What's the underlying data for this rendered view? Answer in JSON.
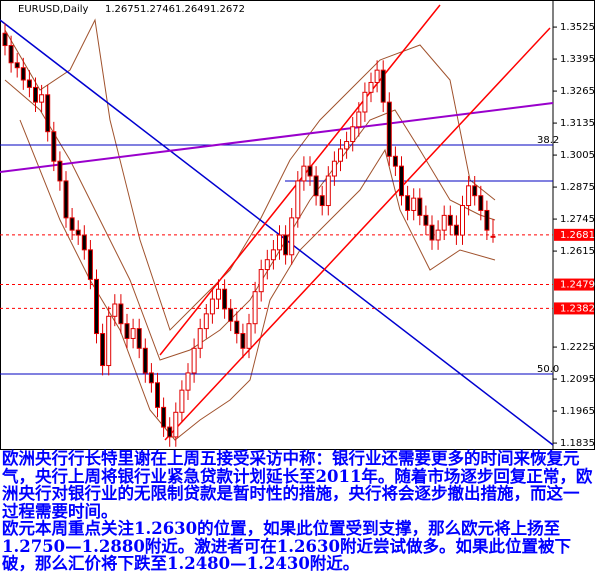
{
  "chart_data": {
    "type": "candlestick",
    "title": "EURUSD,Daily",
    "open": [
      1.35,
      1.345,
      1.338,
      1.336,
      1.331,
      1.328,
      1.322,
      1.325,
      1.31,
      1.298,
      1.29,
      1.275,
      1.27,
      1.268,
      1.262,
      1.25,
      1.228,
      1.215,
      1.235,
      1.24,
      1.232,
      1.226,
      1.23,
      1.222,
      1.212,
      1.208,
      1.198,
      1.19,
      1.186,
      1.196,
      1.205,
      1.212,
      1.222,
      1.23,
      1.236,
      1.242,
      1.246,
      1.238,
      1.233,
      1.228,
      1.222,
      1.232,
      1.245,
      1.254,
      1.258,
      1.262,
      1.268,
      1.26,
      1.275,
      1.29,
      1.296,
      1.292,
      1.284,
      1.28,
      1.292,
      1.298,
      1.303,
      1.306,
      1.312,
      1.318,
      1.326,
      1.33,
      1.335,
      1.322,
      1.3,
      1.296,
      1.284,
      1.278,
      1.283,
      1.276,
      1.272,
      1.266,
      1.27,
      1.276,
      1.272,
      1.268,
      1.28,
      1.288,
      1.284,
      1.278,
      1.2675
    ],
    "high": [
      1.354,
      1.349,
      1.342,
      1.34,
      1.335,
      1.332,
      1.329,
      1.329,
      1.314,
      1.302,
      1.294,
      1.279,
      1.274,
      1.272,
      1.266,
      1.254,
      1.232,
      1.239,
      1.244,
      1.244,
      1.236,
      1.234,
      1.234,
      1.226,
      1.216,
      1.212,
      1.202,
      1.194,
      1.2,
      1.209,
      1.216,
      1.226,
      1.234,
      1.24,
      1.246,
      1.25,
      1.25,
      1.242,
      1.237,
      1.232,
      1.236,
      1.249,
      1.258,
      1.262,
      1.266,
      1.272,
      1.272,
      1.279,
      1.294,
      1.3,
      1.3,
      1.296,
      1.288,
      1.296,
      1.302,
      1.307,
      1.31,
      1.316,
      1.322,
      1.33,
      1.334,
      1.339,
      1.339,
      1.326,
      1.304,
      1.3,
      1.288,
      1.287,
      1.287,
      1.28,
      1.276,
      1.274,
      1.28,
      1.28,
      1.276,
      1.284,
      1.292,
      1.292,
      1.288,
      1.282,
      1.2746
    ],
    "low": [
      1.341,
      1.334,
      1.332,
      1.327,
      1.324,
      1.318,
      1.318,
      1.306,
      1.294,
      1.286,
      1.271,
      1.266,
      1.264,
      1.258,
      1.246,
      1.224,
      1.211,
      1.211,
      1.231,
      1.228,
      1.222,
      1.222,
      1.218,
      1.208,
      1.204,
      1.194,
      1.186,
      1.182,
      1.182,
      1.192,
      1.201,
      1.208,
      1.218,
      1.226,
      1.232,
      1.238,
      1.234,
      1.229,
      1.224,
      1.218,
      1.218,
      1.228,
      1.241,
      1.25,
      1.254,
      1.258,
      1.256,
      1.256,
      1.271,
      1.286,
      1.288,
      1.28,
      1.276,
      1.276,
      1.288,
      1.294,
      1.299,
      1.302,
      1.308,
      1.314,
      1.322,
      1.326,
      1.318,
      1.296,
      1.292,
      1.28,
      1.274,
      1.274,
      1.272,
      1.268,
      1.262,
      1.262,
      1.266,
      1.268,
      1.264,
      1.264,
      1.276,
      1.28,
      1.274,
      1.266,
      1.2649
    ],
    "close": [
      1.345,
      1.338,
      1.336,
      1.331,
      1.328,
      1.322,
      1.325,
      1.31,
      1.298,
      1.29,
      1.275,
      1.27,
      1.268,
      1.262,
      1.25,
      1.228,
      1.215,
      1.235,
      1.24,
      1.232,
      1.226,
      1.23,
      1.222,
      1.212,
      1.208,
      1.198,
      1.19,
      1.186,
      1.196,
      1.205,
      1.212,
      1.222,
      1.23,
      1.236,
      1.242,
      1.246,
      1.238,
      1.233,
      1.228,
      1.222,
      1.232,
      1.245,
      1.254,
      1.258,
      1.262,
      1.268,
      1.26,
      1.275,
      1.29,
      1.296,
      1.292,
      1.284,
      1.28,
      1.292,
      1.298,
      1.303,
      1.306,
      1.312,
      1.318,
      1.326,
      1.33,
      1.335,
      1.322,
      1.3,
      1.296,
      1.284,
      1.278,
      1.283,
      1.276,
      1.272,
      1.266,
      1.27,
      1.276,
      1.272,
      1.268,
      1.28,
      1.288,
      1.284,
      1.278,
      1.27,
      1.2672
    ],
    "up_color": "#ffffff",
    "down_color": "#000000",
    "wick_color": "#e00000",
    "ylim": [
      1.1815,
      1.3635
    ],
    "yticks": [
      1.3525,
      1.3395,
      1.3265,
      1.3135,
      1.3005,
      1.2875,
      1.2745,
      1.2615,
      1.2225,
      1.2095,
      1.1965,
      1.1835
    ],
    "price_lines": [
      1.2681,
      1.2479,
      1.2382
    ],
    "price_line_color": "#ff0000",
    "fib_levels": [
      38.2,
      {
        "value": 50,
        "label": "50.0"
      }
    ]
  },
  "notes": [
    "欧洲央行行长特里谢在上周五接受采访中称：银行业还需要更多的时间来恢复元气，央行上周将银行业紧急贷款计划延长至2011年。随着市场逐步回复正常，欧洲央行对银行业的无限制贷款是暂时性的措施，央行将会逐步撤出措施，而这一过程需要时间。",
    "欧元本周重点关注1.2630的位置，如果此位置受到支撑，那么欧元将上扬至1.2750—1.2880附近。激进者可在1.2630附近尝试做多。如果此位置被下破，那么汇价将下跌至1.2480—1.2430附近。"
  ]
}
